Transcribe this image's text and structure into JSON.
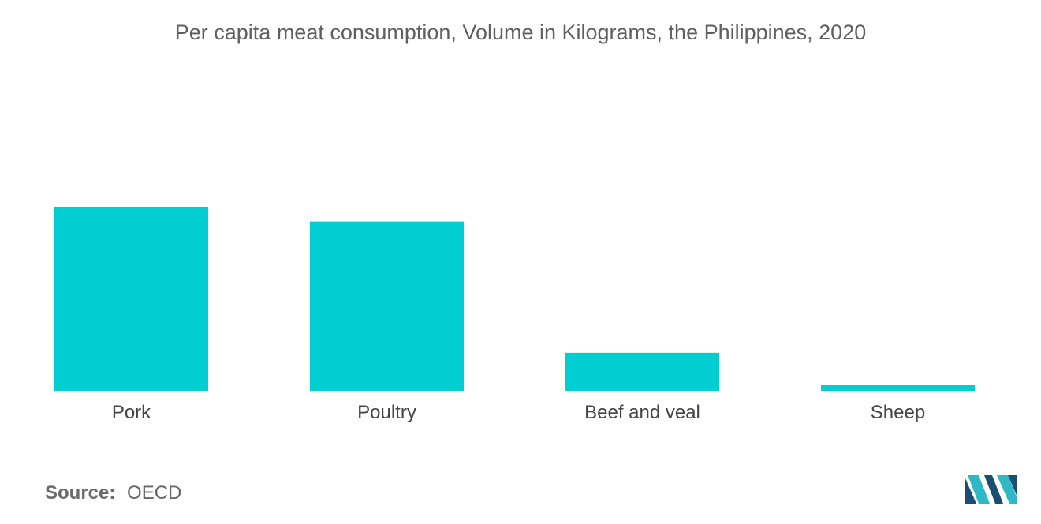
{
  "chart_data": {
    "type": "bar",
    "title": "Per capita meat consumption, Volume in Kilograms, the Philippines, 2020",
    "categories": [
      "Pork",
      "Poultry",
      "Beef and veal",
      "Sheep"
    ],
    "values": [
      15.0,
      13.8,
      3.1,
      0.5
    ],
    "xlabel": "",
    "ylabel": "",
    "ylim": [
      0,
      15.0
    ],
    "grid": false,
    "legend": "none",
    "bar_color": "#00CED1"
  },
  "source": {
    "label": "Source:",
    "value": "OECD"
  },
  "logo": {
    "icon": "mordor-intelligence-logo-icon",
    "color_dark": "#1B4F72",
    "color_light": "#2FB8C6"
  }
}
